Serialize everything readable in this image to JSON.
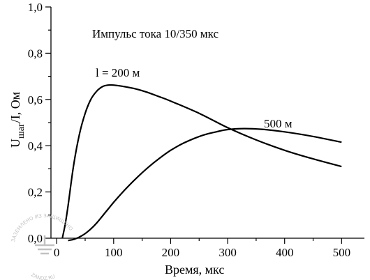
{
  "chart_data": {
    "type": "line",
    "title": "Импульс тока 10/350 мкс",
    "xlabel": "Время,  мкс",
    "ylabel_main": "U",
    "ylabel_sub": "шаг",
    "ylabel_tail": "/I, Ом",
    "xlim": [
      -10,
      540
    ],
    "ylim": [
      0,
      1.0
    ],
    "xticks": [
      0,
      100,
      200,
      300,
      400,
      500
    ],
    "xtick_labels": [
      "0",
      "100",
      "200",
      "300",
      "400",
      "500"
    ],
    "yticks": [
      0,
      0.2,
      0.4,
      0.6,
      0.8,
      1.0
    ],
    "ytick_labels": [
      "0,0",
      "0,2",
      "0,4",
      "0,6",
      "0,8",
      "1,0"
    ],
    "grid": false,
    "series": [
      {
        "name": "l = 200 м",
        "x": [
          10,
          15,
          20,
          30,
          40,
          50,
          60,
          70,
          80,
          90,
          100,
          120,
          140,
          160,
          180,
          200,
          250,
          300,
          350,
          400,
          450,
          500
        ],
        "y": [
          0.0,
          0.06,
          0.14,
          0.32,
          0.45,
          0.54,
          0.6,
          0.635,
          0.655,
          0.662,
          0.662,
          0.655,
          0.645,
          0.63,
          0.612,
          0.593,
          0.54,
          0.478,
          0.425,
          0.38,
          0.343,
          0.31
        ]
      },
      {
        "name": "500 м",
        "x": [
          20,
          30,
          40,
          50,
          60,
          70,
          80,
          90,
          100,
          120,
          140,
          160,
          180,
          200,
          220,
          240,
          260,
          280,
          300,
          330,
          360,
          400,
          450,
          500
        ],
        "y": [
          -0.01,
          -0.005,
          0.005,
          0.02,
          0.04,
          0.065,
          0.095,
          0.125,
          0.155,
          0.21,
          0.26,
          0.305,
          0.345,
          0.38,
          0.408,
          0.43,
          0.448,
          0.46,
          0.47,
          0.474,
          0.471,
          0.46,
          0.44,
          0.415
        ]
      }
    ]
  },
  "watermark": {
    "text_top": "ЗАЗЕМЛЕНО ИЗ ЗАЩИЩЕНО",
    "text_bottom": "ZANDZ.RU",
    "icon": "ground-symbol-icon",
    "color": "#b8b8b8"
  }
}
